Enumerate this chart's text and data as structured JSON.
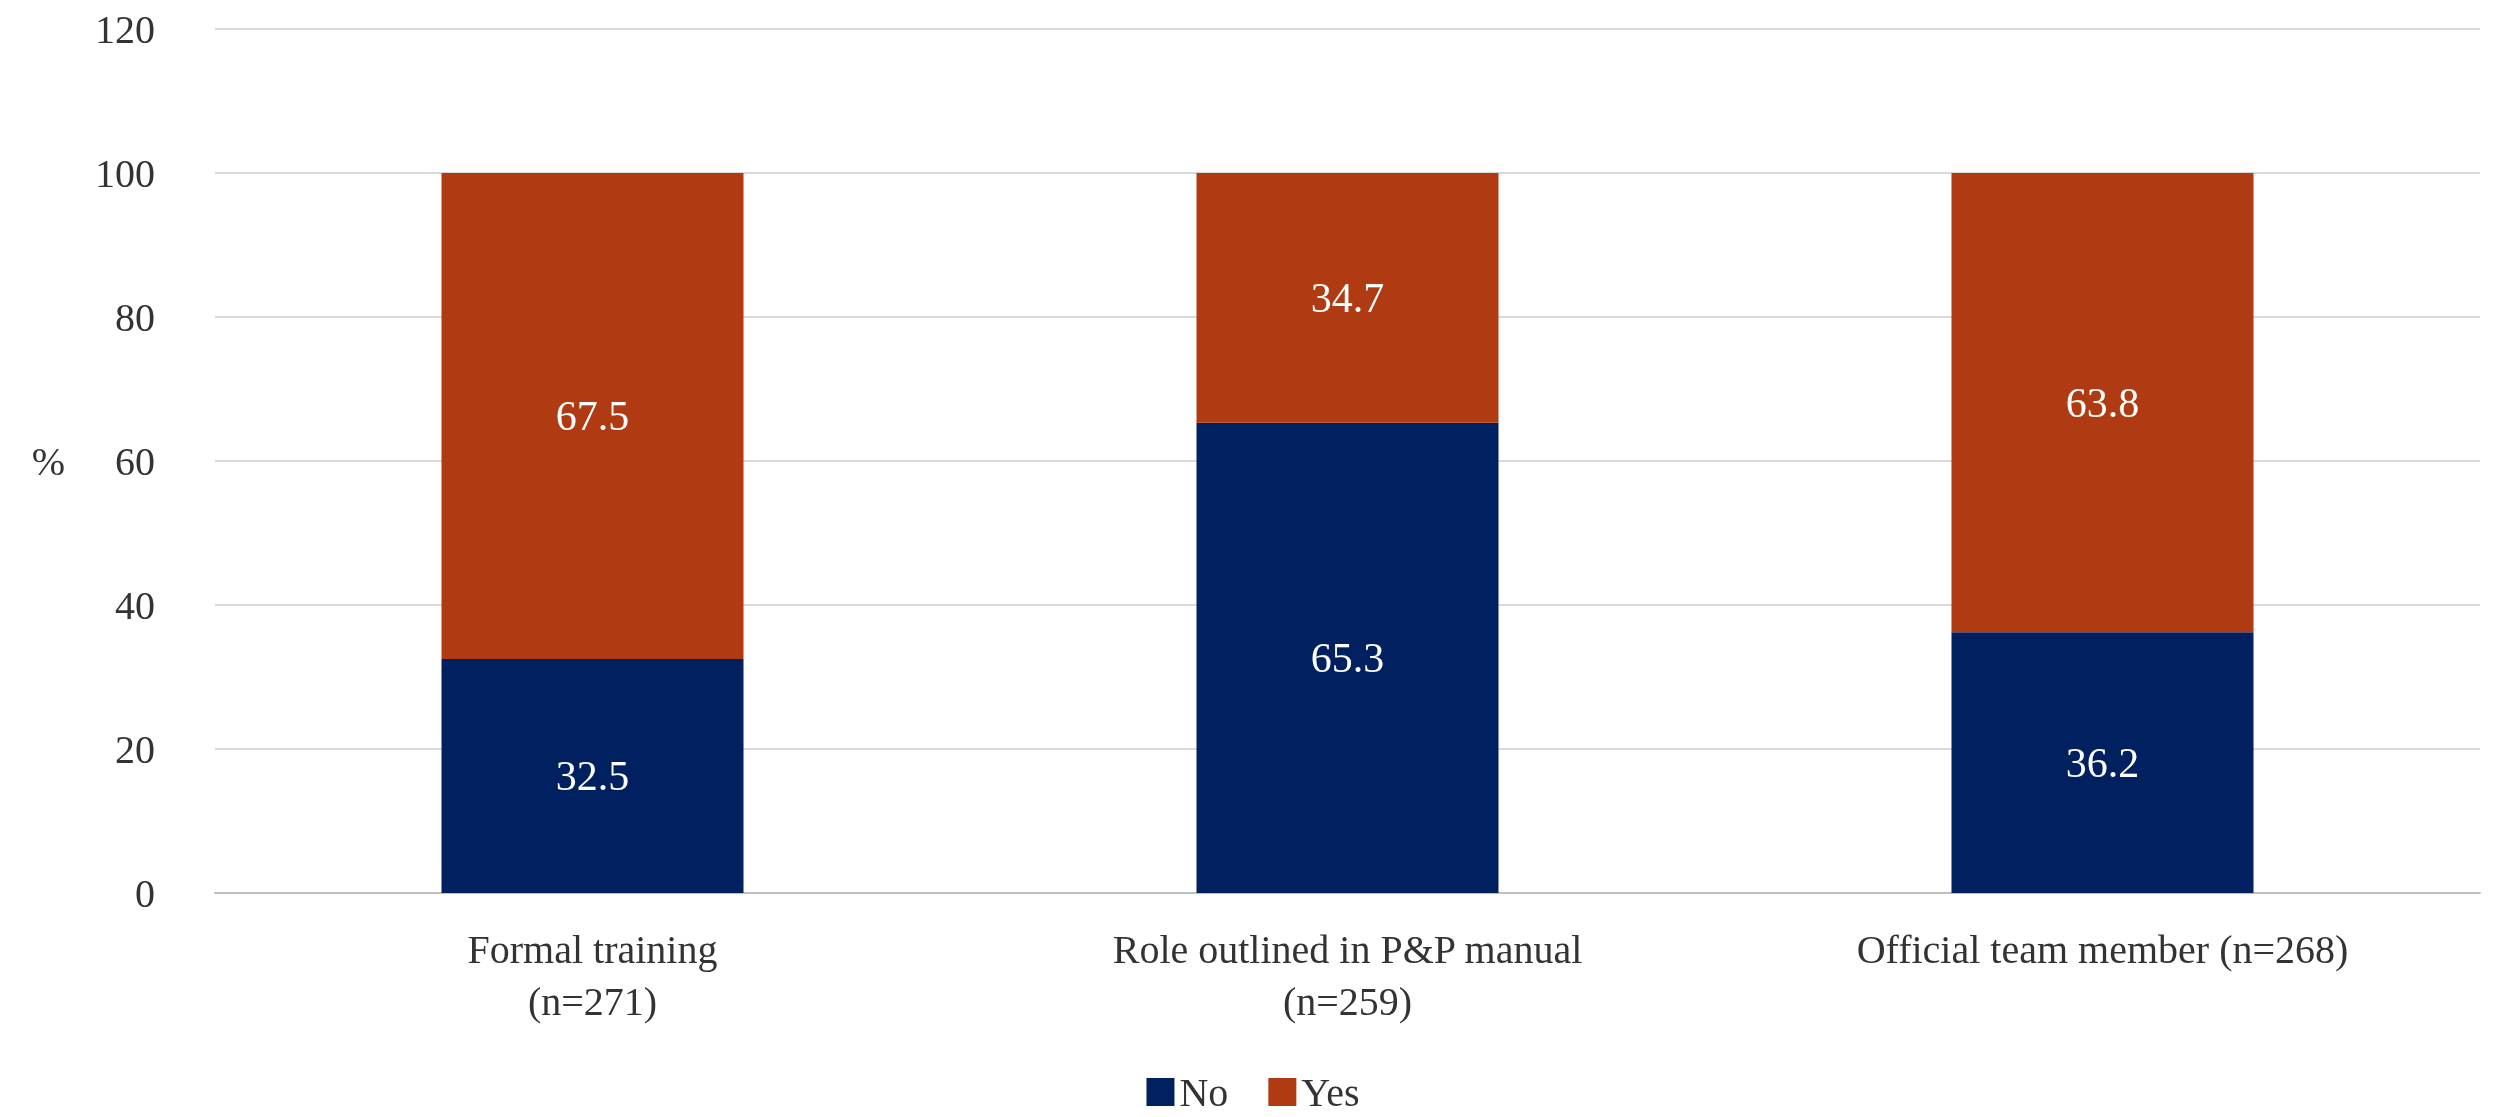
{
  "chart_data": {
    "type": "bar",
    "stacked": true,
    "ylabel": "%",
    "categories": [
      "Formal training\n(n=271)",
      "Role outlined in P&P manual\n(n=259)",
      "Official team member (n=268)"
    ],
    "series": [
      {
        "name": "No",
        "color": "#002060",
        "values": [
          32.5,
          65.3,
          36.2
        ]
      },
      {
        "name": "Yes",
        "color": "#b03a12",
        "values": [
          67.5,
          34.7,
          63.8
        ]
      }
    ],
    "ylim": [
      0,
      120
    ],
    "yticks": [
      0,
      20,
      40,
      60,
      80,
      100,
      120
    ],
    "grid": "y",
    "legend": "bottom",
    "data_labels": true
  }
}
